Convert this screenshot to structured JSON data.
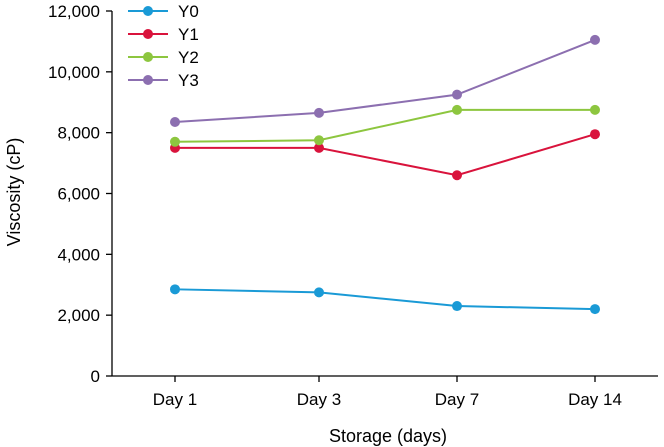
{
  "chart_data": {
    "type": "line",
    "title": "",
    "xlabel": "Storage (days)",
    "ylabel": "Viscosity (cP)",
    "categories": [
      "Day 1",
      "Day 3",
      "Day 7",
      "Day 14"
    ],
    "ylim": [
      0,
      12000
    ],
    "yticks": [
      0,
      2000,
      4000,
      6000,
      8000,
      10000,
      12000
    ],
    "ytick_labels": [
      "0",
      "2,000",
      "4,000",
      "6,000",
      "8,000",
      "10,000",
      "12,000"
    ],
    "grid": false,
    "legend_position": "top-left",
    "series": [
      {
        "name": "Y0",
        "color": "#1a9ad6",
        "values": [
          2850,
          2750,
          2300,
          2200
        ]
      },
      {
        "name": "Y1",
        "color": "#d9133c",
        "values": [
          7500,
          7500,
          6600,
          7950
        ]
      },
      {
        "name": "Y2",
        "color": "#8dc63f",
        "values": [
          7700,
          7750,
          8750,
          8750
        ]
      },
      {
        "name": "Y3",
        "color": "#8c6fb0",
        "values": [
          8350,
          8650,
          9250,
          11050
        ]
      }
    ]
  }
}
